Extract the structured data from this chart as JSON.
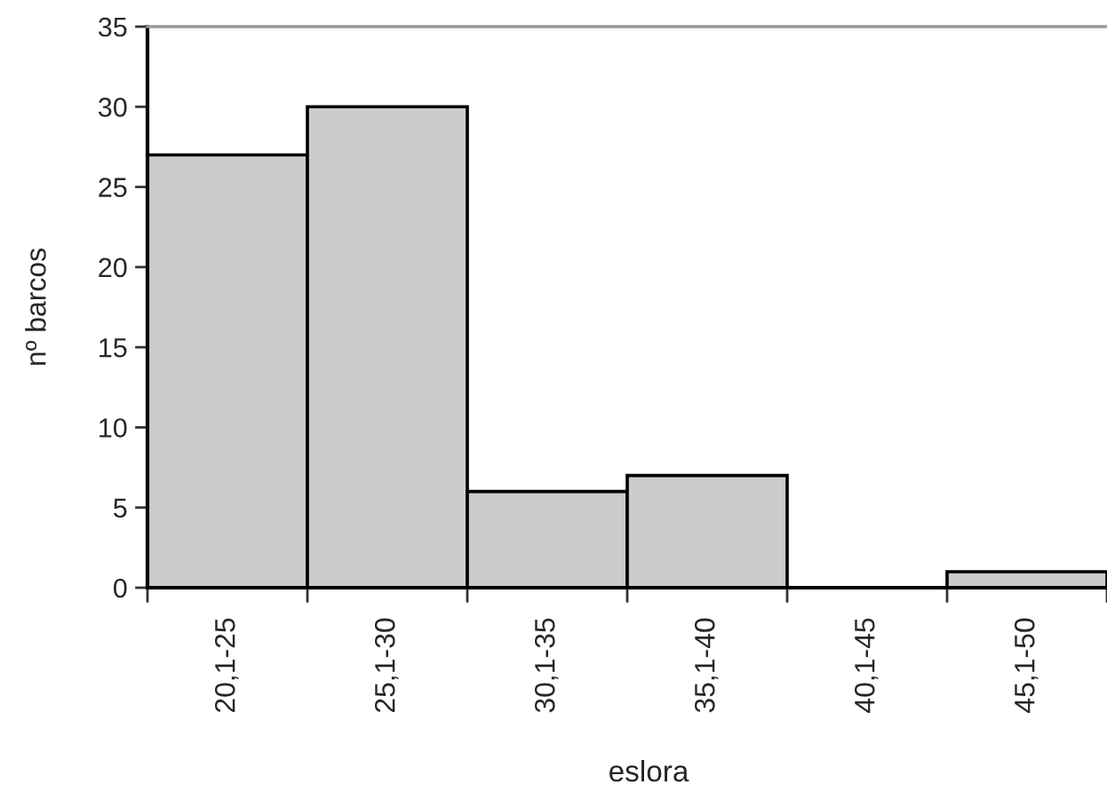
{
  "chart_data": {
    "type": "bar",
    "xlabel": "eslora",
    "ylabel": "nº barcos",
    "categories": [
      "20,1-25",
      "25,1-30",
      "30,1-35",
      "35,1-40",
      "40,1-45",
      "45,1-50"
    ],
    "values": [
      27,
      30,
      6,
      7,
      0,
      1
    ],
    "color": "#cccccc",
    "ylim": [
      0,
      35
    ],
    "yticks": [
      0,
      5,
      10,
      15,
      20,
      25,
      30,
      35
    ]
  }
}
